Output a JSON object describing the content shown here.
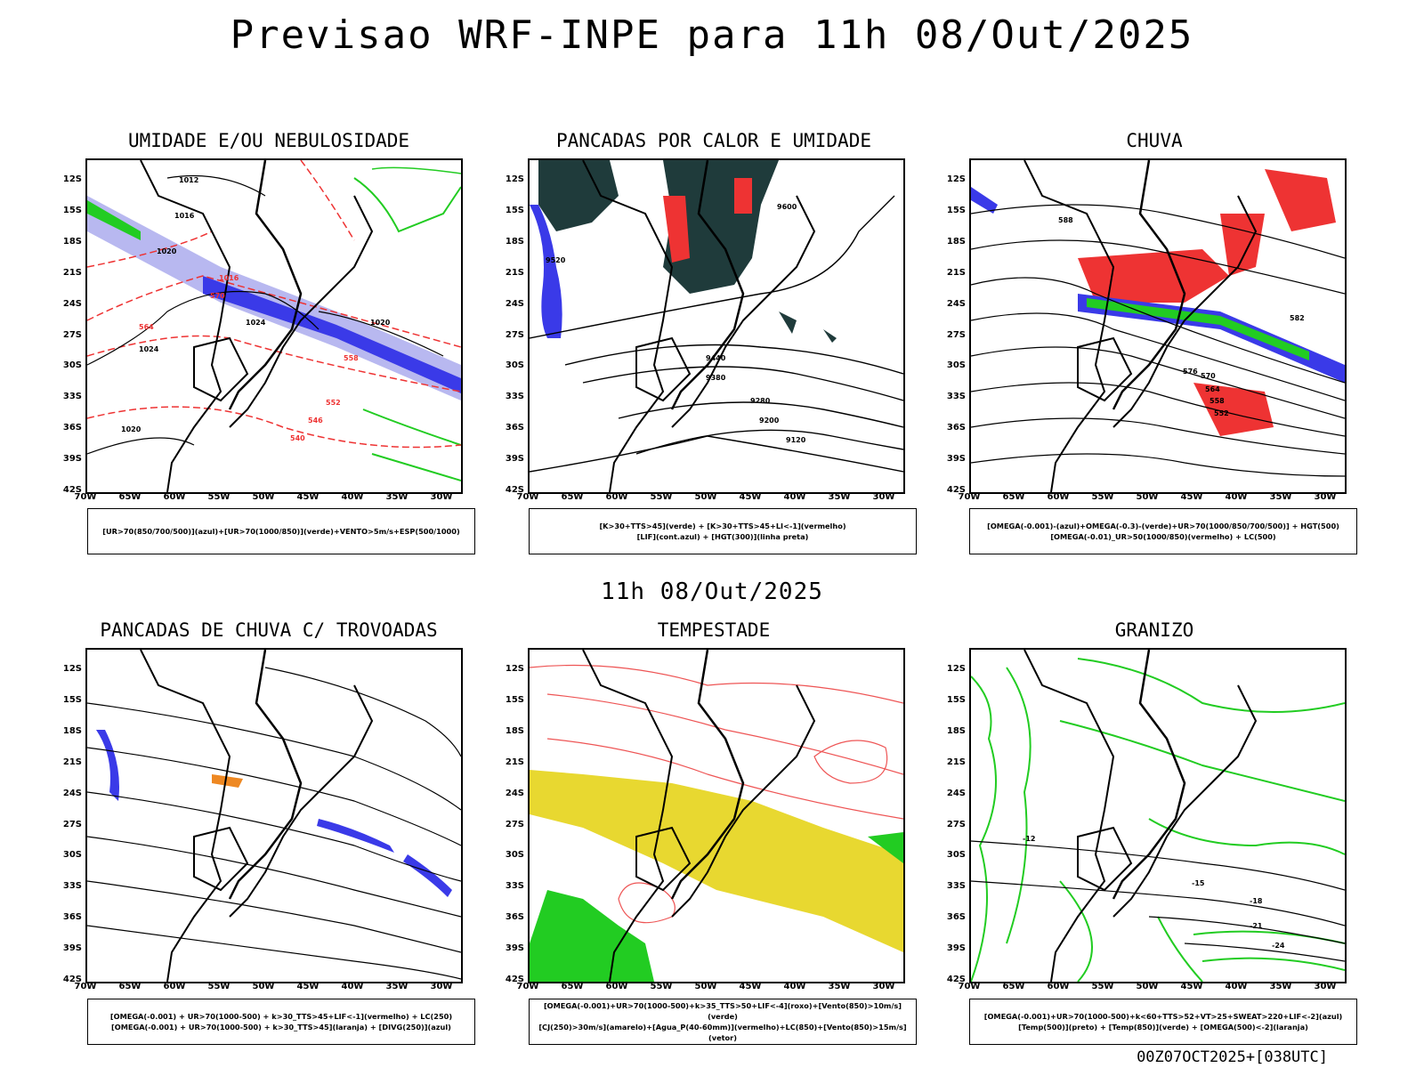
{
  "title": "Previsao WRF-INPE  para 11h 08/Out/2025",
  "subtitle": "11h 08/Out/2025",
  "footer": "00Z07OCT2025+[038UTC]",
  "panels": [
    {
      "title": "UMIDADE E/OU NEBULOSIDADE",
      "legend": [
        "[UR>70(850/700/500)](azul)+[UR>70(1000/850)](verde)+VENTO>5m/s+ESP(500/1000)"
      ]
    },
    {
      "title": "PANCADAS POR CALOR E UMIDADE",
      "legend": [
        "[K>30+TTS>45](verde) + [K>30+TTS>45+LI<-1](vermelho)",
        "[LIF](cont.azul) + [HGT(300)](linha preta)"
      ]
    },
    {
      "title": "CHUVA",
      "legend": [
        "[OMEGA(-0.001)-(azul)+OMEGA(-0.3)-(verde)+UR>70(1000/850/700/500)] + HGT(500)",
        "[OMEGA(-0.01)_UR>50(1000/850)(vermelho) + LC(500)"
      ]
    },
    {
      "title": "PANCADAS DE CHUVA C/ TROVOADAS",
      "legend": [
        "[OMEGA(-0.001) + UR>70(1000-500) + k>30_TTS>45+LIF<-1](vermelho) + LC(250)",
        "[OMEGA(-0.001) + UR>70(1000-500) + k>30_TTS>45](laranja) + [DIVG(250)](azul)"
      ]
    },
    {
      "title": "TEMPESTADE",
      "legend": [
        "[OMEGA(-0.001)+UR>70(1000-500)+k>35_TTS>50+LIF<-4](roxo)+[Vento(850)>10m/s](verde)",
        "[CJ(250)>30m/s](amarelo)+[Agua_P(40-60mm)](vermelho)+LC(850)+[Vento(850)>15m/s](vetor)"
      ]
    },
    {
      "title": "GRANIZO",
      "legend": [
        "[OMEGA(-0.001)+UR>70(1000-500)+k<60+TTS>52+VT>25+SWEAT>220+LIF<-2](azul)",
        "[Temp(500)](preto) + [Temp(850)](verde) + [OMEGA(500)<-2](laranja)"
      ]
    }
  ],
  "axes": {
    "lat_labels": [
      "12S",
      "15S",
      "18S",
      "21S",
      "24S",
      "27S",
      "30S",
      "33S",
      "36S",
      "39S",
      "42S"
    ],
    "lon_labels": [
      "70W",
      "65W",
      "60W",
      "55W",
      "50W",
      "45W",
      "40W",
      "35W",
      "30W"
    ]
  },
  "contour_labels": {
    "p1": [
      "1012",
      "1016",
      "1020",
      "1024",
      "1020",
      "1024",
      "1020",
      "1016",
      "570",
      "564",
      "558",
      "552",
      "546",
      "540"
    ],
    "p2": [
      "9600",
      "9520",
      "9440",
      "9380",
      "9280",
      "9200",
      "9120"
    ],
    "p3": [
      "588",
      "582",
      "576",
      "570",
      "564",
      "558",
      "552"
    ],
    "p6": [
      "-12",
      "-15",
      "-18",
      "-21",
      "-24"
    ]
  },
  "colors": {
    "blue": "#3a3ae8",
    "lightblue": "#b8b8f0",
    "green": "#22cc22",
    "red": "#ee3333",
    "darkteal": "#1f3b3b",
    "orange": "#ee8822",
    "yellow": "#e8d830",
    "salmon": "#ee5555"
  }
}
